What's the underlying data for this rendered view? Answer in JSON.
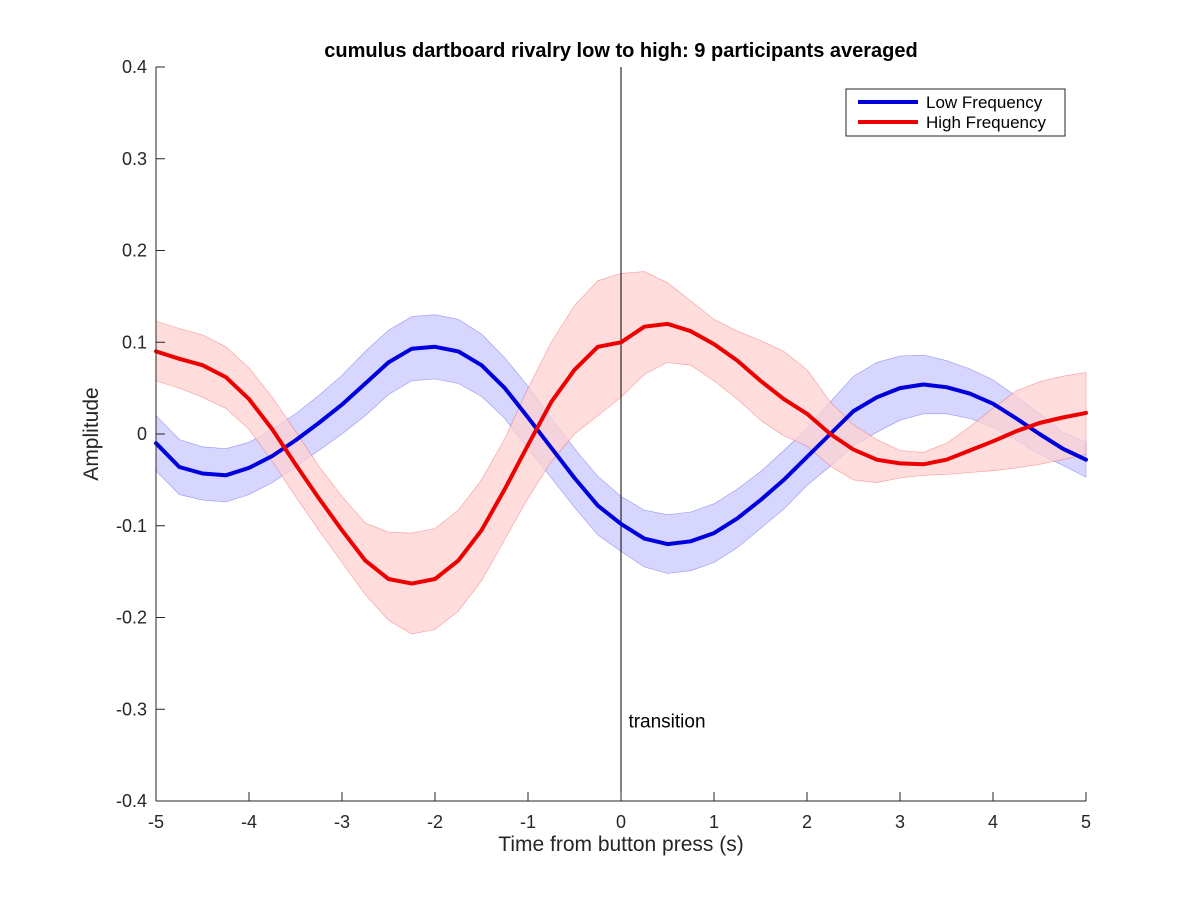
{
  "chart_data": {
    "type": "line",
    "title": "cumulus dartboard rivalry low to high: 9 participants averaged",
    "xlabel": "Time from button press (s)",
    "ylabel": "Amplitude",
    "xlim": [
      -5,
      5
    ],
    "ylim": [
      -0.4,
      0.4
    ],
    "xticks": [
      -5,
      -4,
      -3,
      -2,
      -1,
      0,
      1,
      2,
      3,
      4,
      5
    ],
    "yticks": [
      -0.4,
      -0.3,
      -0.2,
      -0.1,
      0,
      0.1,
      0.2,
      0.3,
      0.4
    ],
    "xtick_labels": [
      "-5",
      "-4",
      "-3",
      "-2",
      "-1",
      "0",
      "1",
      "2",
      "3",
      "4",
      "5"
    ],
    "ytick_labels": [
      "-0.4",
      "-0.3",
      "-0.2",
      "-0.1",
      "0",
      "0.1",
      "0.2",
      "0.3",
      "0.4"
    ],
    "grid": false,
    "legend_position": "top-right",
    "annotations": [
      {
        "text": "transition",
        "x": 0.08,
        "y": -0.32
      }
    ],
    "vertical_line_x": 0,
    "x": [
      -5,
      -4.75,
      -4.5,
      -4.25,
      -4,
      -3.75,
      -3.5,
      -3.25,
      -3,
      -2.75,
      -2.5,
      -2.25,
      -2,
      -1.75,
      -1.5,
      -1.25,
      -1,
      -0.75,
      -0.5,
      -0.25,
      0,
      0.25,
      0.5,
      0.75,
      1,
      1.25,
      1.5,
      1.75,
      2,
      2.25,
      2.5,
      2.75,
      3,
      3.25,
      3.5,
      3.75,
      4,
      4.25,
      4.5,
      4.75,
      5
    ],
    "series": [
      {
        "name": "Low Frequency",
        "color": "#0000dd",
        "band_color": "#c8c8ff",
        "values": [
          -0.01,
          -0.036,
          -0.043,
          -0.045,
          -0.037,
          -0.024,
          -0.007,
          0.012,
          0.032,
          0.055,
          0.078,
          0.093,
          0.095,
          0.09,
          0.075,
          0.05,
          0.018,
          -0.015,
          -0.048,
          -0.078,
          -0.098,
          -0.114,
          -0.12,
          -0.117,
          -0.108,
          -0.092,
          -0.072,
          -0.05,
          -0.025,
          0.0,
          0.025,
          0.04,
          0.05,
          0.054,
          0.051,
          0.044,
          0.033,
          0.017,
          0.0,
          -0.016,
          -0.028
        ],
        "upper": [
          0.02,
          -0.006,
          -0.014,
          -0.016,
          -0.009,
          0.005,
          0.022,
          0.042,
          0.064,
          0.09,
          0.113,
          0.128,
          0.13,
          0.125,
          0.109,
          0.083,
          0.052,
          0.018,
          -0.016,
          -0.046,
          -0.068,
          -0.083,
          -0.088,
          -0.085,
          -0.076,
          -0.06,
          -0.041,
          -0.018,
          0.006,
          0.035,
          0.063,
          0.078,
          0.085,
          0.086,
          0.08,
          0.071,
          0.059,
          0.041,
          0.022,
          0.002,
          -0.009
        ],
        "lower": [
          -0.04,
          -0.066,
          -0.072,
          -0.074,
          -0.066,
          -0.053,
          -0.036,
          -0.018,
          0.0,
          0.02,
          0.043,
          0.058,
          0.06,
          0.055,
          0.041,
          0.017,
          -0.016,
          -0.048,
          -0.08,
          -0.11,
          -0.128,
          -0.145,
          -0.152,
          -0.149,
          -0.14,
          -0.124,
          -0.103,
          -0.082,
          -0.056,
          -0.035,
          -0.013,
          0.002,
          0.015,
          0.022,
          0.022,
          0.017,
          0.007,
          -0.007,
          -0.022,
          -0.034,
          -0.047
        ]
      },
      {
        "name": "High Frequency",
        "color": "#ee0000",
        "band_color": "#ffd2d2",
        "values": [
          0.09,
          0.082,
          0.075,
          0.062,
          0.038,
          0.005,
          -0.033,
          -0.07,
          -0.105,
          -0.138,
          -0.158,
          -0.163,
          -0.158,
          -0.138,
          -0.105,
          -0.06,
          -0.012,
          0.035,
          0.07,
          0.095,
          0.1,
          0.117,
          0.12,
          0.112,
          0.098,
          0.08,
          0.058,
          0.038,
          0.022,
          0.0,
          -0.017,
          -0.028,
          -0.032,
          -0.033,
          -0.028,
          -0.018,
          -0.008,
          0.003,
          0.012,
          0.018,
          0.023
        ],
        "upper": [
          0.123,
          0.115,
          0.108,
          0.095,
          0.072,
          0.04,
          0.003,
          -0.035,
          -0.068,
          -0.097,
          -0.107,
          -0.108,
          -0.103,
          -0.083,
          -0.05,
          -0.005,
          0.05,
          0.1,
          0.14,
          0.167,
          0.175,
          0.177,
          0.165,
          0.145,
          0.125,
          0.112,
          0.102,
          0.09,
          0.07,
          0.035,
          0.01,
          -0.006,
          -0.018,
          -0.02,
          -0.01,
          0.008,
          0.028,
          0.047,
          0.057,
          0.063,
          0.067
        ],
        "lower": [
          0.058,
          0.05,
          0.04,
          0.028,
          0.005,
          -0.03,
          -0.068,
          -0.105,
          -0.14,
          -0.175,
          -0.203,
          -0.218,
          -0.213,
          -0.193,
          -0.16,
          -0.115,
          -0.07,
          -0.03,
          0.0,
          0.02,
          0.04,
          0.065,
          0.078,
          0.075,
          0.058,
          0.038,
          0.015,
          -0.002,
          -0.013,
          -0.035,
          -0.05,
          -0.053,
          -0.048,
          -0.045,
          -0.044,
          -0.042,
          -0.04,
          -0.037,
          -0.033,
          -0.028,
          -0.022
        ]
      }
    ]
  }
}
